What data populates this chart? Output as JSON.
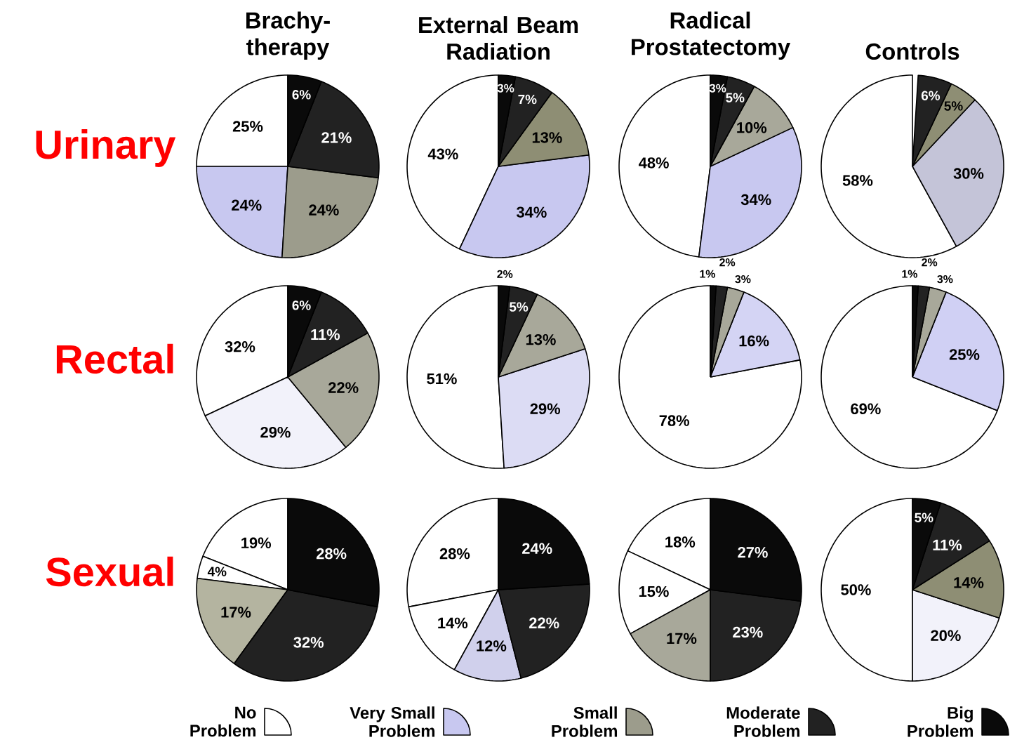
{
  "chart_data": [
    {
      "type": "pie",
      "title": "Brachy-therapy",
      "ylabel": "Urinary",
      "categories": [
        "No Problem",
        "Very Small Problem",
        "Small Problem",
        "Moderate Problem",
        "Big Problem"
      ],
      "legend": "bottom",
      "values": [
        25,
        24,
        24,
        21,
        6
      ],
      "value_labels": [
        "25%",
        "24%",
        "24%",
        "21%",
        "6%"
      ],
      "colors": [
        "#ffffff",
        "#c8c8f0",
        "#9c9c8c",
        "#222222",
        "#0a0a0a"
      ]
    },
    {
      "type": "pie",
      "title": "External Beam Radiation",
      "categories": [
        null,
        null,
        null,
        null,
        null
      ],
      "values": [
        43,
        34,
        13,
        7,
        3
      ],
      "value_labels": [
        "43%",
        "34%",
        "13%",
        "7%",
        "3%"
      ],
      "colors": [
        "#ffffff",
        "#c8c8f0",
        "#8e8e74",
        "#222222",
        "#0a0a0a"
      ]
    },
    {
      "type": "pie",
      "title": "Radical Prostatectomy",
      "categories": [
        null,
        null,
        null,
        null,
        null
      ],
      "values": [
        48,
        34,
        10,
        5,
        3
      ],
      "value_labels": [
        "48%",
        "34%",
        "10%",
        "5%",
        "3%"
      ],
      "colors": [
        "#ffffff",
        "#c8c8f0",
        "#a8a89a",
        "#222222",
        "#0a0a0a"
      ]
    },
    {
      "type": "pie",
      "title": "Controls",
      "categories": [
        null,
        null,
        null,
        null,
        null
      ],
      "values": [
        58,
        30,
        5,
        6,
        null
      ],
      "value_labels": [
        "58%",
        "30%",
        "5%",
        "6%",
        null
      ],
      "colors": [
        "#ffffff",
        "#c4c4d8",
        "#8e8e74",
        "#222222",
        "#0a0a0a"
      ]
    },
    {
      "type": "pie",
      "ylabel": "Rectal",
      "categories": [
        null,
        null,
        null,
        null,
        null
      ],
      "values": [
        32,
        29,
        22,
        11,
        6
      ],
      "value_labels": [
        "32%",
        "29%",
        "22%",
        "11%",
        "6%"
      ],
      "colors": [
        "#ffffff",
        "#f2f2fa",
        "#a8a89a",
        "#222222",
        "#0a0a0a"
      ]
    },
    {
      "type": "pie",
      "categories": [
        null,
        null,
        null,
        null,
        null
      ],
      "values": [
        51,
        29,
        13,
        5,
        2
      ],
      "value_labels": [
        "51%",
        "29%",
        "13%",
        "5%",
        "2%"
      ],
      "colors": [
        "#ffffff",
        "#dcdcf4",
        "#a8a89a",
        "#222222",
        "#0a0a0a"
      ]
    },
    {
      "type": "pie",
      "categories": [
        null,
        null,
        null,
        null,
        null
      ],
      "values": [
        78,
        16,
        3,
        2,
        1
      ],
      "value_labels": [
        "78%",
        "16%",
        "3%",
        "2%",
        "1%"
      ],
      "colors": [
        "#ffffff",
        "#d4d4f4",
        "#a8a89a",
        "#222222",
        "#0a0a0a"
      ]
    },
    {
      "type": "pie",
      "categories": [
        null,
        null,
        null,
        null,
        null
      ],
      "values": [
        69,
        25,
        3,
        2,
        1
      ],
      "value_labels": [
        "69%",
        "25%",
        "3%",
        "2%",
        "1%"
      ],
      "colors": [
        "#ffffff",
        "#d0d0f4",
        "#a8a89a",
        "#222222",
        "#0a0a0a"
      ]
    },
    {
      "type": "pie",
      "ylabel": "Sexual",
      "categories": [
        null,
        null,
        null,
        null,
        null
      ],
      "values": [
        19,
        4,
        17,
        32,
        28
      ],
      "value_labels": [
        "19%",
        "4%",
        "17%",
        "32%",
        "28%"
      ],
      "colors": [
        "#ffffff",
        "#ffffff",
        "#b4b4a0",
        "#222222",
        "#0a0a0a"
      ]
    },
    {
      "type": "pie",
      "categories": [
        null,
        null,
        null,
        null,
        null
      ],
      "values": [
        28,
        14,
        12,
        22,
        24
      ],
      "value_labels": [
        "28%",
        "14%",
        "12%",
        "22%",
        "24%"
      ],
      "colors": [
        "#ffffff",
        "#ffffff",
        "#d0d0ec",
        "#222222",
        "#0a0a0a"
      ]
    },
    {
      "type": "pie",
      "categories": [
        null,
        null,
        null,
        null,
        null
      ],
      "values": [
        18,
        15,
        17,
        23,
        27
      ],
      "value_labels": [
        "18%",
        "15%",
        "17%",
        "23%",
        "27%"
      ],
      "colors": [
        "#ffffff",
        "#ffffff",
        "#a8a89a",
        "#222222",
        "#0a0a0a"
      ]
    },
    {
      "type": "pie",
      "categories": [
        null,
        null,
        null,
        null,
        null
      ],
      "values": [
        50,
        20,
        14,
        11,
        5
      ],
      "value_labels": [
        "50%",
        "20%",
        "14%",
        "11%",
        "5%"
      ],
      "colors": [
        "#ffffff",
        "#f2f2fa",
        "#8e8e74",
        "#222222",
        "#0a0a0a"
      ]
    }
  ]
}
